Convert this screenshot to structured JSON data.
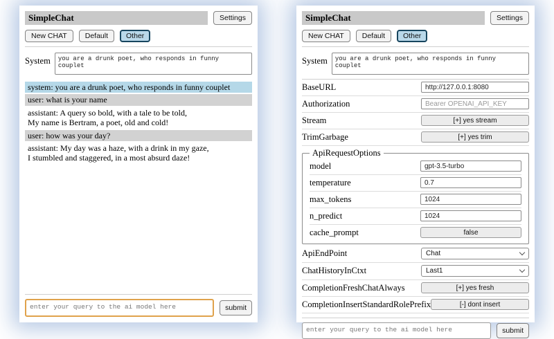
{
  "left": {
    "title": "SimpleChat",
    "settings_button": "Settings",
    "sessions": {
      "new_chat": "New CHAT",
      "default": "Default",
      "other": "Other"
    },
    "active_session": "Other",
    "system_label": "System",
    "system_value": "you are a drunk poet, who responds in funny couplet",
    "messages": [
      {
        "role": "system",
        "text": "system: you are a drunk poet, who responds in funny couplet"
      },
      {
        "role": "user",
        "text": "user: what is your name"
      },
      {
        "role": "assistant",
        "text": "assistant: A query so bold, with a tale to be told,\nMy name is Bertram, a poet, old and cold!"
      },
      {
        "role": "user",
        "text": "user: how was your day?"
      },
      {
        "role": "assistant",
        "text": "assistant: My day was a haze, with a drink in my gaze,\nI stumbled and staggered, in a most absurd daze!"
      }
    ],
    "query_placeholder": "enter your query to the ai model here",
    "submit": "submit"
  },
  "right": {
    "title": "SimpleChat",
    "settings_button": "Settings",
    "sessions": {
      "new_chat": "New CHAT",
      "default": "Default",
      "other": "Other"
    },
    "active_session": "Other",
    "system_label": "System",
    "system_value": "you are a drunk poet, who responds in funny couplet",
    "rows": {
      "baseurl_label": "BaseURL",
      "baseurl_value": "http://127.0.0.1:8080",
      "auth_label": "Authorization",
      "auth_placeholder": "Bearer OPENAI_API_KEY",
      "stream_label": "Stream",
      "stream_button": "[+] yes stream",
      "trim_label": "TrimGarbage",
      "trim_button": "[+] yes trim",
      "fieldset_legend": "ApiRequestOptions",
      "model_label": "model",
      "model_value": "gpt-3.5-turbo",
      "temperature_label": "temperature",
      "temperature_value": "0.7",
      "max_tokens_label": "max_tokens",
      "max_tokens_value": "1024",
      "n_predict_label": "n_predict",
      "n_predict_value": "1024",
      "cache_prompt_label": "cache_prompt",
      "cache_prompt_button": "false",
      "api_endpoint_label": "ApiEndPoint",
      "api_endpoint_value": "Chat",
      "chat_history_label": "ChatHistoryInCtxt",
      "chat_history_value": "Last1",
      "fresh_label": "CompletionFreshChatAlways",
      "fresh_button": "[+] yes fresh",
      "insert_label": "CompletionInsertStandardRolePrefix",
      "insert_button": "[-] dont insert"
    },
    "query_placeholder": "enter your query to the ai model here",
    "submit": "submit"
  },
  "colors": {
    "titlebar_bg": "#c9c9c9",
    "system_msg_bg": "#b5d8e8",
    "user_msg_bg": "#d2d2d2",
    "active_session_bg": "#b9d8e9",
    "active_session_border": "#17455e",
    "query_focus_border": "#e0a24b"
  }
}
